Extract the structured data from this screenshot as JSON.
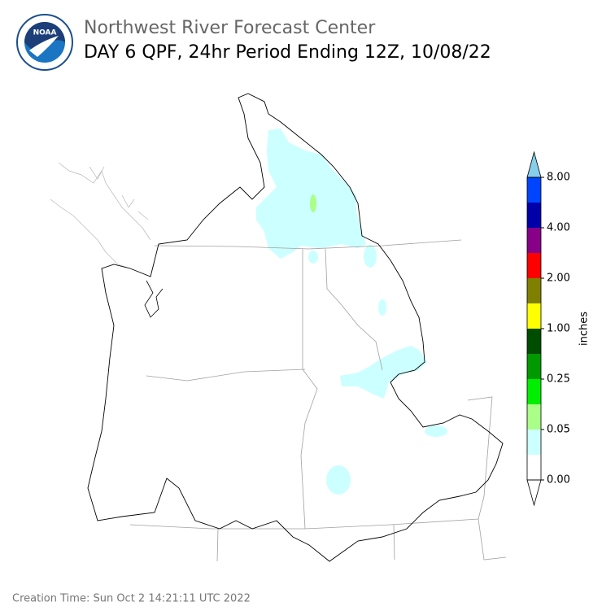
{
  "header": {
    "logo_text": "NOAA",
    "org": "Northwest River Forecast Center",
    "title": "DAY 6 QPF, 24hr Period Ending 12Z, 10/08/22"
  },
  "colorbar": {
    "label": "inches",
    "ticks": [
      "0.00",
      "0.05",
      "0.25",
      "1.00",
      "2.00",
      "4.00",
      "8.00"
    ],
    "colors": [
      "#ffffff",
      "#ccffff",
      "#aaff88",
      "#00ee00",
      "#009900",
      "#004d00",
      "#ffff00",
      "#808000",
      "#ff0000",
      "#880088",
      "#0000aa",
      "#0044ff"
    ],
    "under_color": "#ffffff",
    "over_color": "#87ceeb"
  },
  "footer": {
    "creation_time": "Creation Time: Sun Oct 2 14:21:11 UTC 2022"
  }
}
